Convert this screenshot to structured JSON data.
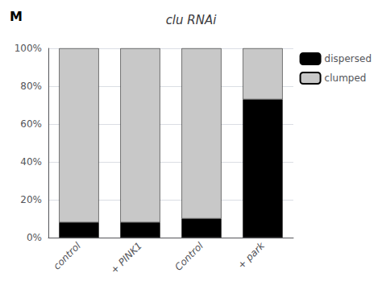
{
  "chart_data": {
    "type": "bar",
    "title": "clu RNAi",
    "categories": [
      "control",
      "+ PINK1",
      "Control",
      "+ park"
    ],
    "series": [
      {
        "name": "dispersed",
        "color": "#000000",
        "values": [
          8,
          8,
          10,
          73
        ]
      },
      {
        "name": "clumped",
        "color": "#c8c8c8",
        "values": [
          92,
          92,
          90,
          27
        ]
      }
    ],
    "stacked": true,
    "ylim": [
      0,
      100
    ],
    "yticks": [
      {
        "value": 0,
        "label": "0%"
      },
      {
        "value": 20,
        "label": "20%"
      },
      {
        "value": 40,
        "label": "40%"
      },
      {
        "value": 60,
        "label": "60%"
      },
      {
        "value": 80,
        "label": "80%"
      },
      {
        "value": 100,
        "label": "100%"
      }
    ],
    "grid": true,
    "legend": "upper right",
    "annotations": [
      "M"
    ]
  }
}
